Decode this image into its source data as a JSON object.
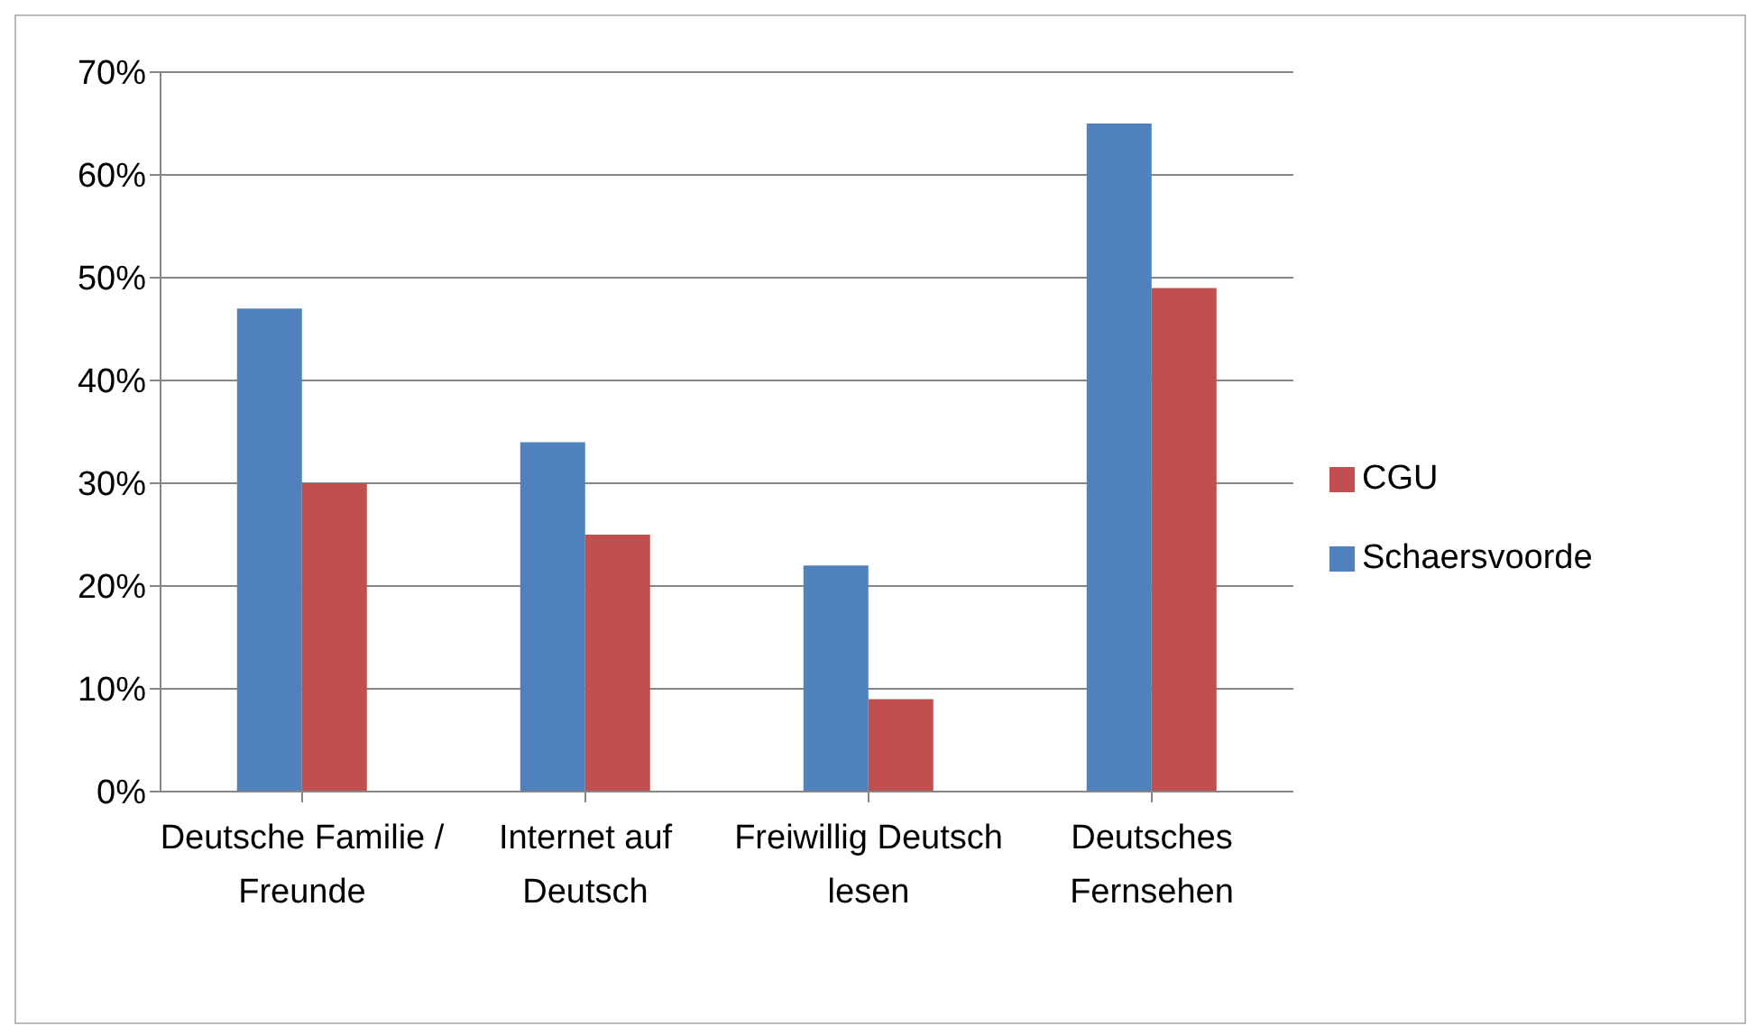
{
  "chart_data": {
    "type": "bar",
    "categories": [
      "Deutsche Familie / Freunde",
      "Internet auf Deutsch",
      "Freiwillig Deutsch lesen",
      "Deutsches Fernsehen"
    ],
    "series": [
      {
        "name": "Schaersvoorde",
        "color": "#4f81bd",
        "values": [
          47,
          34,
          22,
          65
        ]
      },
      {
        "name": "CGU",
        "color": "#c0504d",
        "values": [
          30,
          25,
          9,
          49
        ]
      }
    ],
    "ylim": [
      0,
      70
    ],
    "yticks": [
      {
        "value": 0,
        "label": "0%"
      },
      {
        "value": 10,
        "label": "10%"
      },
      {
        "value": 20,
        "label": "20%"
      },
      {
        "value": 30,
        "label": "30%"
      },
      {
        "value": 40,
        "label": "40%"
      },
      {
        "value": 50,
        "label": "50%"
      },
      {
        "value": 60,
        "label": "60%"
      },
      {
        "value": 70,
        "label": "70%"
      }
    ],
    "grid": "y",
    "legend": "right"
  }
}
